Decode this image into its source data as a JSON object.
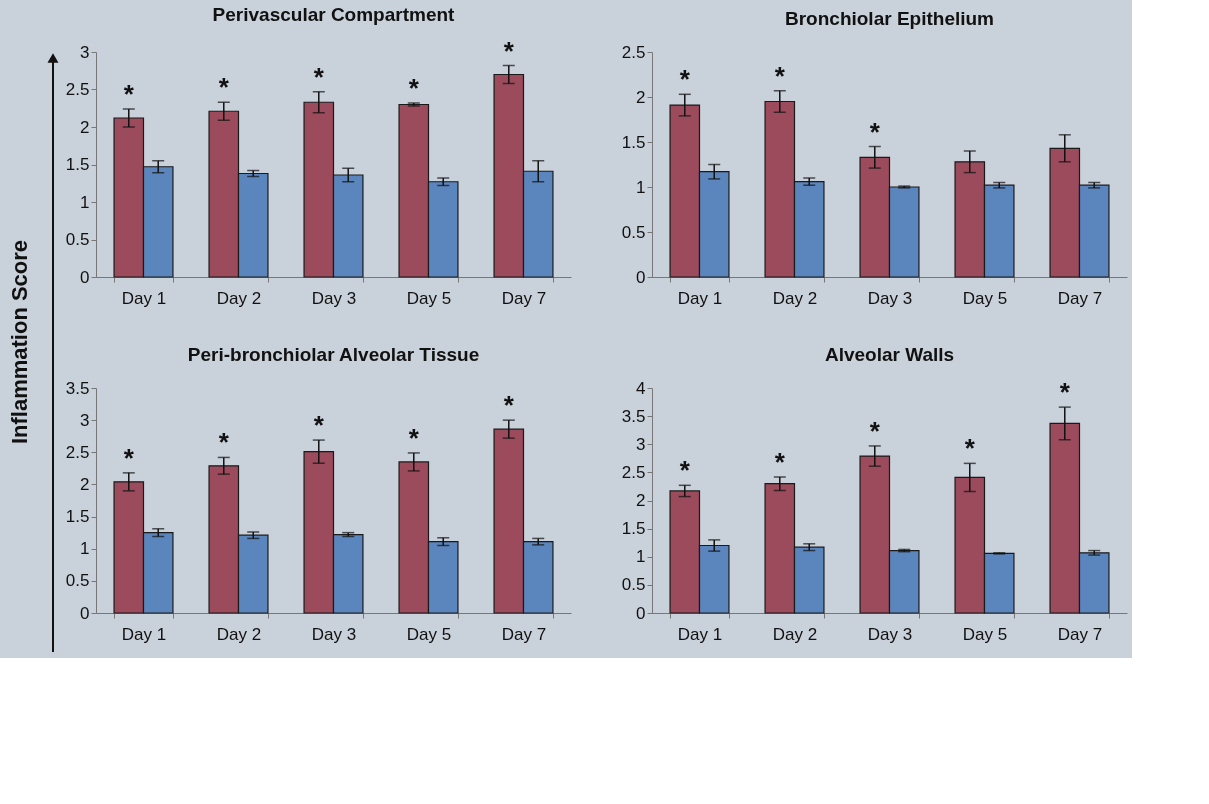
{
  "chart_data": [
    {
      "type": "bar",
      "title": "Perivascular Compartment",
      "ylabel": "Inflammation Score",
      "categories": [
        "Day 1",
        "Day 2",
        "Day 3",
        "Day 5",
        "Day 7"
      ],
      "ylim": [
        0,
        3
      ],
      "yticks": [
        0,
        0.5,
        1,
        1.5,
        2,
        2.5,
        3
      ],
      "grid": false,
      "legend": false,
      "series": [
        {
          "color": "#9b4b5c",
          "values": [
            2.12,
            2.21,
            2.33,
            2.3,
            2.7
          ],
          "errors": [
            0.12,
            0.12,
            0.14,
            0.02,
            0.12
          ]
        },
        {
          "color": "#5b86bd",
          "values": [
            1.47,
            1.38,
            1.36,
            1.27,
            1.41
          ],
          "errors": [
            0.08,
            0.04,
            0.09,
            0.05,
            0.14
          ]
        }
      ],
      "annotations": [
        {
          "text": "*",
          "x": "Day 1",
          "y": 2.12
        },
        {
          "text": "*",
          "x": "Day 2",
          "y": 2.21
        },
        {
          "text": "*",
          "x": "Day 3",
          "y": 2.33
        },
        {
          "text": "*",
          "x": "Day 5",
          "y": 2.3
        },
        {
          "text": "*",
          "x": "Day 7",
          "y": 2.7
        }
      ]
    },
    {
      "type": "bar",
      "title": "Bronchiolar Epithelium",
      "categories": [
        "Day 1",
        "Day 2",
        "Day 3",
        "Day 5",
        "Day 7"
      ],
      "ylim": [
        0,
        2.5
      ],
      "yticks": [
        0,
        0.5,
        1,
        1.5,
        2,
        2.5
      ],
      "grid": false,
      "legend": false,
      "series": [
        {
          "color": "#9b4b5c",
          "values": [
            1.91,
            1.95,
            1.33,
            1.28,
            1.43
          ],
          "errors": [
            0.12,
            0.12,
            0.12,
            0.12,
            0.15
          ]
        },
        {
          "color": "#5b86bd",
          "values": [
            1.17,
            1.06,
            1.0,
            1.02,
            1.02
          ],
          "errors": [
            0.08,
            0.04,
            0.01,
            0.03,
            0.03
          ]
        }
      ],
      "annotations": [
        {
          "text": "*",
          "x": "Day 1",
          "y": 1.91
        },
        {
          "text": "*",
          "x": "Day 2",
          "y": 1.95
        },
        {
          "text": "*",
          "x": "Day 3",
          "y": 1.33
        }
      ]
    },
    {
      "type": "bar",
      "title": "Peri-bronchiolar Alveolar Tissue",
      "categories": [
        "Day 1",
        "Day 2",
        "Day 3",
        "Day 5",
        "Day 7"
      ],
      "ylim": [
        0,
        3.5
      ],
      "yticks": [
        0,
        0.5,
        1,
        1.5,
        2,
        2.5,
        3,
        3.5
      ],
      "grid": false,
      "legend": false,
      "series": [
        {
          "color": "#9b4b5c",
          "values": [
            2.04,
            2.29,
            2.51,
            2.35,
            2.86
          ],
          "errors": [
            0.14,
            0.13,
            0.18,
            0.14,
            0.14
          ]
        },
        {
          "color": "#5b86bd",
          "values": [
            1.25,
            1.21,
            1.22,
            1.11,
            1.11
          ],
          "errors": [
            0.06,
            0.05,
            0.03,
            0.06,
            0.05
          ]
        }
      ],
      "annotations": [
        {
          "text": "*",
          "x": "Day 1",
          "y": 2.04
        },
        {
          "text": "*",
          "x": "Day 2",
          "y": 2.29
        },
        {
          "text": "*",
          "x": "Day 3",
          "y": 2.51
        },
        {
          "text": "*",
          "x": "Day 5",
          "y": 2.35
        },
        {
          "text": "*",
          "x": "Day 7",
          "y": 2.86
        }
      ]
    },
    {
      "type": "bar",
      "title": "Alveolar Walls",
      "categories": [
        "Day 1",
        "Day 2",
        "Day 3",
        "Day 5",
        "Day 7"
      ],
      "ylim": [
        0,
        4
      ],
      "yticks": [
        0,
        0.5,
        1,
        1.5,
        2,
        2.5,
        3,
        3.5,
        4
      ],
      "grid": false,
      "legend": false,
      "series": [
        {
          "color": "#9b4b5c",
          "values": [
            2.17,
            2.3,
            2.79,
            2.41,
            3.37
          ],
          "errors": [
            0.1,
            0.12,
            0.18,
            0.25,
            0.29
          ]
        },
        {
          "color": "#5b86bd",
          "values": [
            1.2,
            1.17,
            1.11,
            1.06,
            1.07
          ],
          "errors": [
            0.1,
            0.06,
            0.02,
            0.01,
            0.04
          ]
        }
      ],
      "annotations": [
        {
          "text": "*",
          "x": "Day 1",
          "y": 2.17
        },
        {
          "text": "*",
          "x": "Day 2",
          "y": 2.3
        },
        {
          "text": "*",
          "x": "Day 3",
          "y": 2.79
        },
        {
          "text": "*",
          "x": "Day 5",
          "y": 2.41
        },
        {
          "text": "*",
          "x": "Day 7",
          "y": 3.37
        }
      ]
    }
  ]
}
